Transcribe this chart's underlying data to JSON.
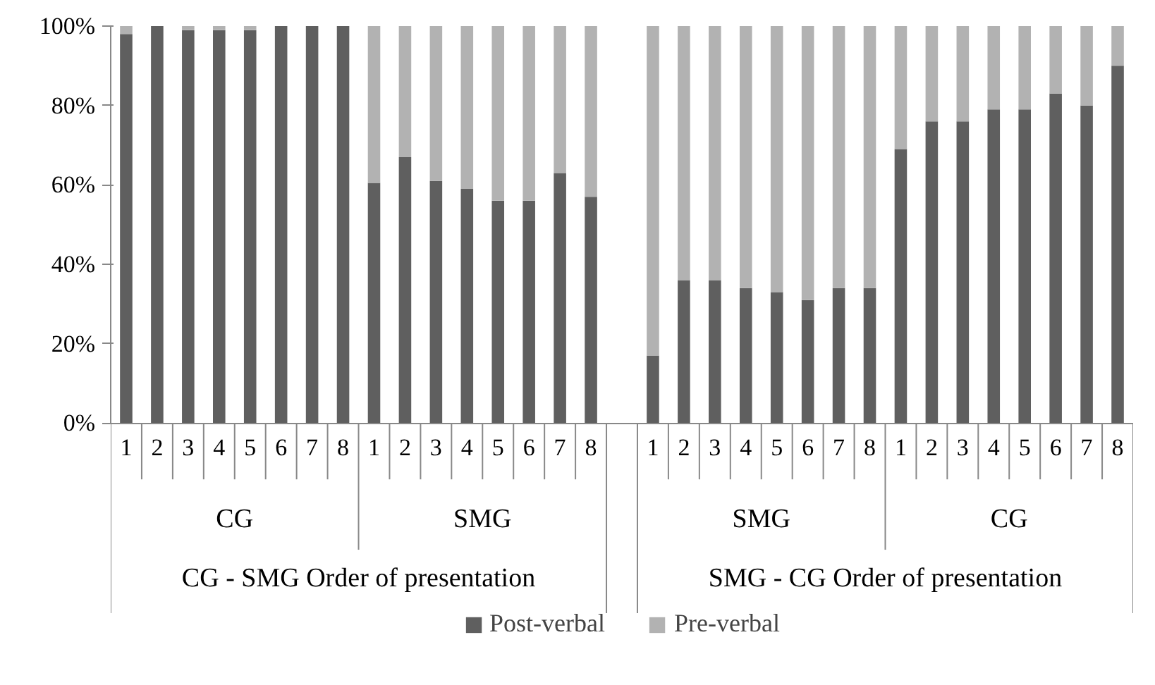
{
  "chart_data": {
    "type": "bar",
    "stacked": true,
    "categories": [
      "1",
      "2",
      "3",
      "4",
      "5",
      "6",
      "7",
      "8",
      "1",
      "2",
      "3",
      "4",
      "5",
      "6",
      "7",
      "8",
      null,
      "1",
      "2",
      "3",
      "4",
      "5",
      "6",
      "7",
      "8",
      "1",
      "2",
      "3",
      "4",
      "5",
      "6",
      "7",
      "8"
    ],
    "series": [
      {
        "name": "Post-verbal",
        "color": "#5f5f5f",
        "values": [
          98,
          100,
          99,
          99,
          99,
          100,
          100,
          100,
          60.5,
          67,
          61,
          59,
          56,
          56,
          63,
          57,
          null,
          17,
          36,
          36,
          34,
          33,
          31,
          34,
          34,
          69,
          76,
          76,
          79,
          79,
          83,
          80,
          90
        ]
      },
      {
        "name": "Pre-verbal",
        "color": "#b2b2b2",
        "values": [
          2,
          0,
          1,
          1,
          1,
          0,
          0,
          0,
          39.5,
          33,
          39,
          41,
          44,
          44,
          37,
          43,
          null,
          83,
          64,
          64,
          66,
          67,
          69,
          66,
          66,
          31,
          24,
          24,
          21,
          21,
          17,
          20,
          10
        ]
      }
    ],
    "ylim": [
      0,
      100
    ],
    "yticks": [
      {
        "value": 0,
        "label": "0%"
      },
      {
        "value": 20,
        "label": "20%"
      },
      {
        "value": 40,
        "label": "40%"
      },
      {
        "value": 60,
        "label": "60%"
      },
      {
        "value": 80,
        "label": "80%"
      },
      {
        "value": 100,
        "label": "100%"
      }
    ],
    "annotations": [
      "CG",
      "SMG",
      "SMG",
      "CG",
      "CG - SMG Order of presentation",
      "SMG - CG Order of presentation"
    ],
    "legend": "bottom",
    "grid": false
  }
}
